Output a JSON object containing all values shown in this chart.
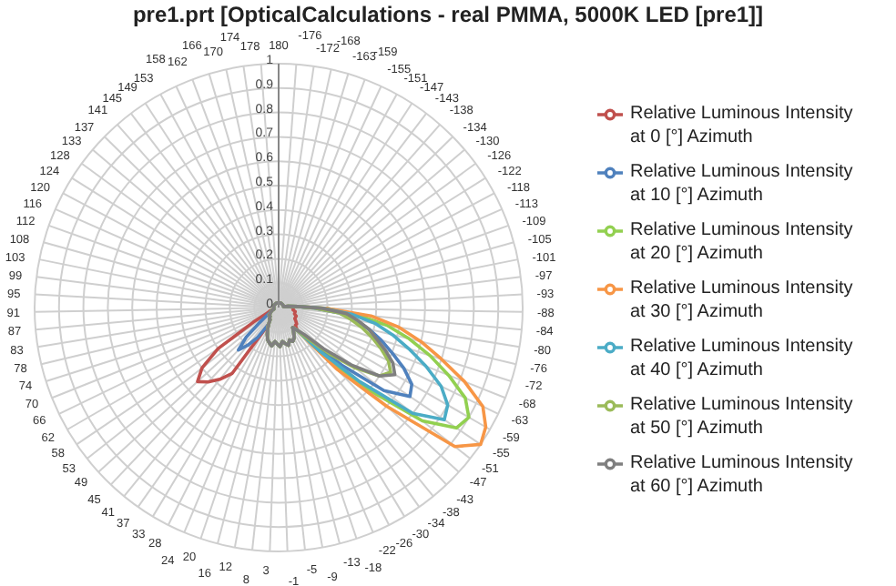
{
  "chart_data": {
    "type": "radar",
    "title": "pre1.prt [OpticalCalculations - real PMMA, 5000K LED [pre1]]",
    "categories": [
      "180",
      "-176",
      "-172",
      "-168",
      "-163",
      "-159",
      "-155",
      "-151",
      "-147",
      "-143",
      "-138",
      "-134",
      "-130",
      "-126",
      "-122",
      "-118",
      "-113",
      "-109",
      "-105",
      "-101",
      "-97",
      "-93",
      "-88",
      "-84",
      "-80",
      "-76",
      "-72",
      "-68",
      "-63",
      "-59",
      "-55",
      "-51",
      "-47",
      "-43",
      "-38",
      "-34",
      "-30",
      "-26",
      "-22",
      "-18",
      "-13",
      "-9",
      "-5",
      "-1",
      "3",
      "8",
      "12",
      "16",
      "20",
      "24",
      "28",
      "33",
      "37",
      "41",
      "45",
      "49",
      "53",
      "58",
      "62",
      "66",
      "70",
      "74",
      "78",
      "83",
      "87",
      "91",
      "95",
      "99",
      "103",
      "108",
      "112",
      "116",
      "120",
      "124",
      "128",
      "133",
      "137",
      "141",
      "145",
      "149",
      "153",
      "158",
      "162",
      "166",
      "170",
      "174",
      "178"
    ],
    "series": [
      {
        "name": "Relative Luminous Intensity at 0 [°] Azimuth",
        "color": "#c0504d",
        "values": [
          0.02,
          0.02,
          0.02,
          0.02,
          0.02,
          0.02,
          0.02,
          0.02,
          0.02,
          0.02,
          0.02,
          0.02,
          0.02,
          0.02,
          0.02,
          0.02,
          0.02,
          0.02,
          0.02,
          0.02,
          0.04,
          0.05,
          0.06,
          0.06,
          0.06,
          0.07,
          0.07,
          0.07,
          0.08,
          0.08,
          0.08,
          0.09,
          0.1,
          0.1,
          0.12,
          0.1,
          0.12,
          0.14,
          0.15,
          0.14,
          0.16,
          0.15,
          0.14,
          0.16,
          0.15,
          0.14,
          0.16,
          0.15,
          0.14,
          0.12,
          0.1,
          0.08,
          0.33,
          0.38,
          0.42,
          0.45,
          0.4,
          0.3,
          0.12,
          0.05,
          0.04,
          0.02,
          0.02,
          0.02,
          0.02,
          0.02,
          0.02,
          0.02,
          0.02,
          0.02,
          0.02,
          0.02,
          0.02,
          0.02,
          0.02,
          0.02,
          0.02,
          0.02,
          0.02,
          0.02,
          0.02,
          0.02,
          0.02,
          0.02,
          0.02,
          0.02,
          0.02
        ]
      },
      {
        "name": "Relative Luminous Intensity at 10 [°] Azimuth",
        "color": "#4f81bd",
        "values": [
          0.02,
          0.02,
          0.02,
          0.02,
          0.02,
          0.02,
          0.02,
          0.02,
          0.02,
          0.02,
          0.02,
          0.02,
          0.02,
          0.02,
          0.02,
          0.02,
          0.02,
          0.02,
          0.02,
          0.02,
          0.04,
          0.08,
          0.15,
          0.25,
          0.32,
          0.38,
          0.44,
          0.5,
          0.57,
          0.63,
          0.65,
          0.55,
          0.35,
          0.2,
          0.12,
          0.1,
          0.12,
          0.14,
          0.15,
          0.14,
          0.16,
          0.15,
          0.14,
          0.16,
          0.15,
          0.14,
          0.16,
          0.15,
          0.14,
          0.12,
          0.1,
          0.08,
          0.15,
          0.2,
          0.24,
          0.18,
          0.1,
          0.06,
          0.04,
          0.03,
          0.03,
          0.02,
          0.02,
          0.02,
          0.02,
          0.02,
          0.02,
          0.02,
          0.02,
          0.02,
          0.02,
          0.02,
          0.02,
          0.02,
          0.02,
          0.02,
          0.02,
          0.02,
          0.02,
          0.02,
          0.02,
          0.02,
          0.02,
          0.02,
          0.02,
          0.02,
          0.02
        ]
      },
      {
        "name": "Relative Luminous Intensity at 20 [°] Azimuth",
        "color": "#92d050",
        "values": [
          0.02,
          0.02,
          0.02,
          0.02,
          0.02,
          0.02,
          0.02,
          0.02,
          0.02,
          0.02,
          0.02,
          0.02,
          0.02,
          0.02,
          0.02,
          0.02,
          0.02,
          0.02,
          0.02,
          0.02,
          0.04,
          0.08,
          0.2,
          0.32,
          0.45,
          0.55,
          0.65,
          0.75,
          0.85,
          0.9,
          0.88,
          0.75,
          0.5,
          0.3,
          0.12,
          0.1,
          0.12,
          0.14,
          0.15,
          0.14,
          0.16,
          0.15,
          0.14,
          0.16,
          0.15,
          0.14,
          0.16,
          0.15,
          0.14,
          0.12,
          0.1,
          0.08,
          0.06,
          0.06,
          0.05,
          0.05,
          0.05,
          0.04,
          0.04,
          0.03,
          0.03,
          0.02,
          0.02,
          0.02,
          0.02,
          0.02,
          0.02,
          0.02,
          0.02,
          0.02,
          0.02,
          0.02,
          0.02,
          0.02,
          0.02,
          0.02,
          0.02,
          0.02,
          0.02,
          0.02,
          0.02,
          0.02,
          0.02,
          0.02,
          0.02,
          0.02,
          0.02
        ]
      },
      {
        "name": "Relative Luminous Intensity at 30 [°] Azimuth",
        "color": "#f79646",
        "values": [
          0.02,
          0.02,
          0.02,
          0.02,
          0.02,
          0.02,
          0.02,
          0.02,
          0.02,
          0.02,
          0.02,
          0.02,
          0.02,
          0.02,
          0.02,
          0.02,
          0.02,
          0.02,
          0.02,
          0.02,
          0.04,
          0.08,
          0.2,
          0.38,
          0.5,
          0.6,
          0.7,
          0.82,
          0.93,
          0.98,
          1,
          0.92,
          0.6,
          0.35,
          0.12,
          0.1,
          0.12,
          0.14,
          0.15,
          0.14,
          0.16,
          0.15,
          0.14,
          0.16,
          0.15,
          0.14,
          0.16,
          0.15,
          0.14,
          0.12,
          0.1,
          0.08,
          0.06,
          0.06,
          0.05,
          0.05,
          0.05,
          0.04,
          0.04,
          0.03,
          0.03,
          0.02,
          0.02,
          0.02,
          0.02,
          0.02,
          0.02,
          0.02,
          0.02,
          0.02,
          0.02,
          0.02,
          0.02,
          0.02,
          0.02,
          0.02,
          0.02,
          0.02,
          0.02,
          0.02,
          0.02,
          0.02,
          0.02,
          0.02,
          0.02,
          0.02,
          0.02
        ]
      },
      {
        "name": "Relative Luminous Intensity at 40 [°] Azimuth",
        "color": "#4bacc6",
        "values": [
          0.02,
          0.02,
          0.02,
          0.02,
          0.02,
          0.02,
          0.02,
          0.02,
          0.02,
          0.02,
          0.02,
          0.02,
          0.02,
          0.02,
          0.02,
          0.02,
          0.02,
          0.02,
          0.02,
          0.02,
          0.04,
          0.08,
          0.18,
          0.3,
          0.4,
          0.48,
          0.56,
          0.65,
          0.74,
          0.8,
          0.82,
          0.7,
          0.45,
          0.25,
          0.12,
          0.1,
          0.12,
          0.14,
          0.15,
          0.14,
          0.16,
          0.15,
          0.14,
          0.16,
          0.15,
          0.14,
          0.16,
          0.15,
          0.14,
          0.12,
          0.1,
          0.08,
          0.06,
          0.06,
          0.05,
          0.05,
          0.05,
          0.04,
          0.04,
          0.03,
          0.03,
          0.02,
          0.02,
          0.02,
          0.02,
          0.02,
          0.02,
          0.02,
          0.02,
          0.02,
          0.02,
          0.02,
          0.02,
          0.02,
          0.02,
          0.02,
          0.02,
          0.02,
          0.02,
          0.02,
          0.02,
          0.02,
          0.02,
          0.02,
          0.02,
          0.02,
          0.02
        ]
      },
      {
        "name": "Relative Luminous Intensity at 50 [°] Azimuth",
        "color": "#9bbb59",
        "values": [
          0.02,
          0.02,
          0.02,
          0.02,
          0.02,
          0.02,
          0.02,
          0.02,
          0.02,
          0.02,
          0.02,
          0.02,
          0.02,
          0.02,
          0.02,
          0.02,
          0.02,
          0.02,
          0.02,
          0.02,
          0.04,
          0.08,
          0.15,
          0.25,
          0.3,
          0.35,
          0.4,
          0.45,
          0.5,
          0.53,
          0.5,
          0.4,
          0.28,
          0.18,
          0.12,
          0.1,
          0.12,
          0.14,
          0.15,
          0.14,
          0.16,
          0.15,
          0.14,
          0.16,
          0.15,
          0.14,
          0.16,
          0.15,
          0.14,
          0.12,
          0.1,
          0.08,
          0.06,
          0.06,
          0.05,
          0.05,
          0.05,
          0.04,
          0.04,
          0.03,
          0.03,
          0.02,
          0.02,
          0.02,
          0.02,
          0.02,
          0.02,
          0.02,
          0.02,
          0.02,
          0.02,
          0.02,
          0.02,
          0.02,
          0.02,
          0.02,
          0.02,
          0.02,
          0.02,
          0.02,
          0.02,
          0.02,
          0.02,
          0.02,
          0.02,
          0.02,
          0.02
        ]
      },
      {
        "name": "Relative Luminous Intensity at 60 [°] Azimuth",
        "color": "#7f7f7f",
        "values": [
          0.02,
          0.02,
          0.02,
          0.02,
          0.02,
          0.02,
          0.02,
          0.02,
          0.02,
          0.02,
          0.02,
          0.02,
          0.02,
          0.02,
          0.02,
          0.02,
          0.02,
          0.02,
          0.02,
          0.02,
          0.04,
          0.08,
          0.18,
          0.28,
          0.33,
          0.38,
          0.42,
          0.47,
          0.52,
          0.55,
          0.5,
          0.38,
          0.25,
          0.15,
          0.12,
          0.1,
          0.12,
          0.14,
          0.15,
          0.14,
          0.16,
          0.15,
          0.14,
          0.16,
          0.15,
          0.14,
          0.16,
          0.15,
          0.14,
          0.12,
          0.1,
          0.08,
          0.06,
          0.06,
          0.05,
          0.05,
          0.05,
          0.04,
          0.04,
          0.03,
          0.03,
          0.02,
          0.02,
          0.02,
          0.02,
          0.02,
          0.02,
          0.02,
          0.02,
          0.02,
          0.02,
          0.02,
          0.02,
          0.02,
          0.02,
          0.02,
          0.02,
          0.02,
          0.02,
          0.02,
          0.02,
          0.02,
          0.02,
          0.02,
          0.02,
          0.02,
          0.02
        ]
      }
    ],
    "ylim": [
      0,
      1
    ],
    "yticks": [
      0,
      0.1,
      0.2,
      0.3,
      0.4,
      0.5,
      0.6,
      0.7,
      0.8,
      0.9,
      1
    ],
    "grid": true,
    "legend": "right",
    "marker": "none",
    "line_style": "solid"
  }
}
